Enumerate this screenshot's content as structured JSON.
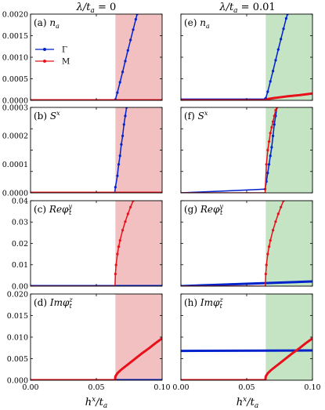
{
  "colors": {
    "gamma": "#0022cc",
    "m": "#e8101a",
    "shade_left": "#f2c0c0",
    "shade_right": "#c4e4c4"
  },
  "columns": [
    {
      "title": "λ/t_a = 0",
      "title_main": "λ/t",
      "title_sub": "a",
      "title_tail": " = 0"
    },
    {
      "title": "λ/t_a = 0.01",
      "title_main": "λ/t",
      "title_sub": "a",
      "title_tail": " = 0.01"
    }
  ],
  "x_axis": {
    "label": "h^x/t_a",
    "label_main": "h",
    "label_sup": "x",
    "label_mid": "/t",
    "label_sub": "a",
    "ticks": [
      "0.00",
      "0.05",
      "0.10"
    ]
  },
  "legend": [
    {
      "name": "Γ",
      "color": "#0022cc"
    },
    {
      "name": "M",
      "color": "#e8101a"
    }
  ],
  "chart_data": [
    {
      "type": "line",
      "panel": "(a)",
      "label": "n_a",
      "label_main": "n",
      "label_sub": "a",
      "col": 0,
      "row": 0,
      "xlim": [
        0,
        0.1
      ],
      "ylim": [
        0,
        0.002
      ],
      "yticks": [
        "0.0000",
        "0.0005",
        "0.0010",
        "0.0015",
        "0.0020"
      ],
      "shaded": [
        0.0645,
        0.1
      ],
      "series": [
        {
          "name": "Γ",
          "color": "#0022cc",
          "marker": true,
          "points": [
            [
              0,
              0
            ],
            [
              0.064,
              0
            ],
            [
              0.0645,
              2e-05
            ],
            [
              0.066,
              0.00018
            ],
            [
              0.068,
              0.00042
            ],
            [
              0.07,
              0.00066
            ],
            [
              0.072,
              0.00091
            ],
            [
              0.074,
              0.00116
            ],
            [
              0.076,
              0.0014
            ],
            [
              0.078,
              0.00164
            ],
            [
              0.08,
              0.00188
            ],
            [
              0.081,
              0.002
            ]
          ]
        },
        {
          "name": "M",
          "color": "#e8101a",
          "marker": false,
          "points": [
            [
              0,
              0
            ],
            [
              0.1,
              0
            ]
          ]
        }
      ]
    },
    {
      "type": "line",
      "panel": "(b)",
      "label": "S^x",
      "label_main": "S",
      "label_sup": "x",
      "col": 0,
      "row": 1,
      "xlim": [
        0,
        0.1
      ],
      "ylim": [
        0,
        0.0003
      ],
      "yticks": [
        "0.0000",
        "0.0001",
        "0.0002",
        "0.0003"
      ],
      "shaded": [
        0.0645,
        0.1
      ],
      "series": [
        {
          "name": "Γ",
          "color": "#0022cc",
          "marker": true,
          "points": [
            [
              0,
              0
            ],
            [
              0.064,
              0
            ],
            [
              0.0645,
              2e-05
            ],
            [
              0.066,
              6e-05
            ],
            [
              0.067,
              0.0001
            ],
            [
              0.068,
              0.00013
            ],
            [
              0.069,
              0.00017
            ],
            [
              0.07,
              0.0002
            ],
            [
              0.071,
              0.00024
            ],
            [
              0.072,
              0.00027
            ],
            [
              0.073,
              0.0003
            ]
          ]
        },
        {
          "name": "M",
          "color": "#e8101a",
          "marker": false,
          "points": [
            [
              0,
              0
            ],
            [
              0.1,
              0
            ]
          ]
        }
      ]
    },
    {
      "type": "line",
      "panel": "(c)",
      "label": "Reφ_t^y",
      "label_main": "Reφ",
      "label_sup": "y",
      "label_sub": "t",
      "col": 0,
      "row": 2,
      "xlim": [
        0,
        0.1
      ],
      "ylim": [
        0,
        0.04
      ],
      "yticks": [
        "0.00",
        "0.01",
        "0.02",
        "0.03",
        "0.04"
      ],
      "shaded": [
        0.0645,
        0.1
      ],
      "series": [
        {
          "name": "Γ",
          "color": "#0022cc",
          "marker": false,
          "points": [
            [
              0,
              0
            ],
            [
              0.1,
              0
            ]
          ]
        },
        {
          "name": "M",
          "color": "#e8101a",
          "marker": true,
          "points": [
            [
              0,
              0
            ],
            [
              0.0642,
              0
            ],
            [
              0.0645,
              0.0057
            ],
            [
              0.065,
              0.0099
            ],
            [
              0.066,
              0.015
            ],
            [
              0.067,
              0.0185
            ],
            [
              0.068,
              0.0214
            ],
            [
              0.07,
              0.0262
            ],
            [
              0.072,
              0.0302
            ],
            [
              0.074,
              0.0338
            ],
            [
              0.076,
              0.037
            ],
            [
              0.078,
              0.04
            ]
          ]
        }
      ]
    },
    {
      "type": "line",
      "panel": "(d)",
      "label": "Imφ_t^z",
      "label_main": "Imφ",
      "label_sup": "z",
      "label_sub": "t",
      "col": 0,
      "row": 3,
      "xlim": [
        0,
        0.1
      ],
      "ylim": [
        0,
        0.02
      ],
      "yticks": [
        "0.000",
        "0.005",
        "0.010",
        "0.015",
        "0.020"
      ],
      "shaded": [
        0.0645,
        0.1
      ],
      "series": [
        {
          "name": "Γ",
          "color": "#0022cc",
          "marker": false,
          "points": [
            [
              0,
              0
            ],
            [
              0.1,
              0
            ]
          ]
        },
        {
          "name": "M",
          "color": "#e8101a",
          "marker": false,
          "points": [
            [
              0,
              0
            ],
            [
              0.0642,
              0
            ],
            [
              0.0645,
              0.0009
            ],
            [
              0.066,
              0.0016
            ],
            [
              0.068,
              0.0022
            ],
            [
              0.07,
              0.0027
            ],
            [
              0.075,
              0.0039
            ],
            [
              0.08,
              0.0051
            ],
            [
              0.085,
              0.0063
            ],
            [
              0.09,
              0.0074
            ],
            [
              0.095,
              0.0086
            ],
            [
              0.1,
              0.0097
            ]
          ]
        }
      ]
    },
    {
      "type": "line",
      "panel": "(e)",
      "label": "n_a",
      "label_main": "n",
      "label_sub": "a",
      "col": 1,
      "row": 0,
      "xlim": [
        0,
        0.1
      ],
      "ylim": [
        0,
        0.002
      ],
      "yticks": [],
      "shaded": [
        0.0645,
        0.1
      ],
      "series": [
        {
          "name": "Γ",
          "color": "#0022cc",
          "marker": true,
          "points": [
            [
              0,
              3e-05
            ],
            [
              0.064,
              3e-05
            ],
            [
              0.0645,
              5e-05
            ],
            [
              0.066,
              0.0002
            ],
            [
              0.068,
              0.00044
            ],
            [
              0.07,
              0.00068
            ],
            [
              0.072,
              0.00093
            ],
            [
              0.074,
              0.00118
            ],
            [
              0.076,
              0.00142
            ],
            [
              0.078,
              0.00166
            ],
            [
              0.08,
              0.0019
            ],
            [
              0.081,
              0.002
            ]
          ]
        },
        {
          "name": "M",
          "color": "#e8101a",
          "marker": false,
          "points": [
            [
              0,
              0
            ],
            [
              0.064,
              0
            ],
            [
              0.066,
              3e-05
            ],
            [
              0.07,
              5e-05
            ],
            [
              0.08,
              9e-05
            ],
            [
              0.09,
              0.00012
            ],
            [
              0.1,
              0.00016
            ]
          ]
        }
      ]
    },
    {
      "type": "line",
      "panel": "(f)",
      "label": "S^x",
      "label_main": "S",
      "label_sup": "x",
      "col": 1,
      "row": 1,
      "xlim": [
        0,
        0.1
      ],
      "ylim": [
        0,
        0.0003
      ],
      "yticks": [],
      "shaded": [
        0.0645,
        0.1
      ],
      "series": [
        {
          "name": "Γ",
          "color": "#0022cc",
          "marker": true,
          "points": [
            [
              0,
              0
            ],
            [
              0.01,
              2e-06
            ],
            [
              0.03,
              6e-06
            ],
            [
              0.05,
              1e-05
            ],
            [
              0.064,
              1.3e-05
            ],
            [
              0.065,
              4e-05
            ],
            [
              0.066,
              7e-05
            ],
            [
              0.067,
              0.0001
            ],
            [
              0.068,
              0.00013
            ],
            [
              0.069,
              0.00016
            ],
            [
              0.07,
              0.0002
            ],
            [
              0.071,
              0.00024
            ],
            [
              0.072,
              0.00027
            ],
            [
              0.073,
              0.0003
            ]
          ]
        },
        {
          "name": "M",
          "color": "#e8101a",
          "marker": true,
          "points": [
            [
              0,
              0
            ],
            [
              0.064,
              0
            ],
            [
              0.065,
              0.0001
            ],
            [
              0.066,
              0.00015
            ],
            [
              0.067,
              0.00018
            ],
            [
              0.068,
              0.00021
            ],
            [
              0.069,
              0.00023
            ],
            [
              0.07,
              0.00025
            ],
            [
              0.071,
              0.00027
            ],
            [
              0.072,
              0.00029
            ],
            [
              0.073,
              0.0003
            ]
          ]
        }
      ]
    },
    {
      "type": "line",
      "panel": "(g)",
      "label": "Reφ_t^y",
      "label_main": "Reφ",
      "label_sup": "y",
      "label_sub": "t",
      "col": 1,
      "row": 2,
      "xlim": [
        0,
        0.1
      ],
      "ylim": [
        0,
        0.04
      ],
      "yticks": [],
      "shaded": [
        0.0645,
        0.1
      ],
      "series": [
        {
          "name": "Γ",
          "color": "#0022cc",
          "marker": false,
          "points": [
            [
              0,
              0
            ],
            [
              0.1,
              0.0022
            ]
          ]
        },
        {
          "name": "M",
          "color": "#e8101a",
          "marker": true,
          "points": [
            [
              0,
              0
            ],
            [
              0.0642,
              0
            ],
            [
              0.0645,
              0.0057
            ],
            [
              0.065,
              0.0099
            ],
            [
              0.066,
              0.015
            ],
            [
              0.067,
              0.0185
            ],
            [
              0.068,
              0.0214
            ],
            [
              0.07,
              0.0262
            ],
            [
              0.072,
              0.0302
            ],
            [
              0.074,
              0.0338
            ],
            [
              0.076,
              0.037
            ],
            [
              0.078,
              0.04
            ]
          ]
        }
      ]
    },
    {
      "type": "line",
      "panel": "(h)",
      "label": "Imφ_t^z",
      "label_main": "Imφ",
      "label_sup": "z",
      "label_sub": "t",
      "col": 1,
      "row": 3,
      "xlim": [
        0,
        0.1
      ],
      "ylim": [
        0,
        0.02
      ],
      "yticks": [],
      "shaded": [
        0.0645,
        0.1
      ],
      "series": [
        {
          "name": "Γ",
          "color": "#0022cc",
          "marker": false,
          "points": [
            [
              0,
              0.0068
            ],
            [
              0.1,
              0.0069
            ]
          ]
        },
        {
          "name": "M",
          "color": "#e8101a",
          "marker": false,
          "points": [
            [
              0,
              0
            ],
            [
              0.0642,
              0
            ],
            [
              0.0645,
              0.0009
            ],
            [
              0.066,
              0.0016
            ],
            [
              0.068,
              0.0022
            ],
            [
              0.07,
              0.0027
            ],
            [
              0.075,
              0.0039
            ],
            [
              0.08,
              0.0051
            ],
            [
              0.085,
              0.0063
            ],
            [
              0.09,
              0.0074
            ],
            [
              0.095,
              0.0086
            ],
            [
              0.1,
              0.0097
            ]
          ]
        }
      ]
    }
  ]
}
